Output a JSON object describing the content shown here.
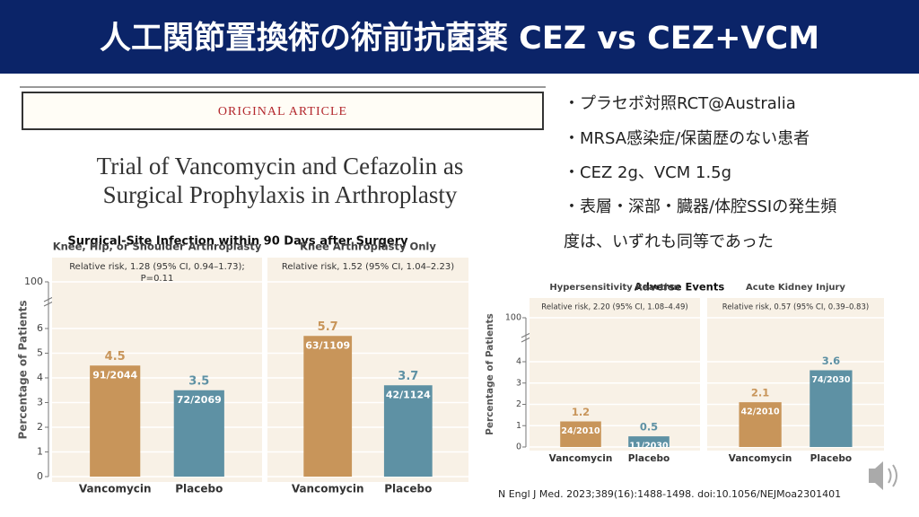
{
  "header": {
    "title": "人工関節置換術の術前抗菌薬 CEZ vs CEZ+VCM"
  },
  "article": {
    "label": "ORIGINAL ARTICLE",
    "title_lines": [
      "Trial of Vancomycin and Cefazolin as",
      "Surgical Prophylaxis in Arthroplasty"
    ]
  },
  "bullets": [
    "・プラセボ対照RCT@Australia",
    "・MRSA感染症/保菌歴のない患者",
    "・CEZ 2g、VCM 1.5g",
    "・表層・深部・臓器/体腔SSIの発生頻",
    "度は、いずれも同等であった"
  ],
  "citation": "N Engl J Med. 2023;389(16):1488-1498. doi:10.1056/NEJMoa2301401",
  "chart_data": [
    {
      "type": "bar",
      "title": "Surgical-Site Infection within 90 Days after Surgery",
      "y_label": "Percentage of Patients",
      "ylim": [
        0,
        100
      ],
      "yticks": [
        0,
        1,
        2,
        3,
        4,
        5,
        6,
        100
      ],
      "axis_break": true,
      "colors": [
        "#c8955a",
        "#5e91a4"
      ],
      "panels": [
        {
          "subtitle": "Knee, Hip, or Shoulder Arthroplasty",
          "annotation": [
            "Relative risk, 1.28 (95% CI, 0.94–1.73);",
            "P=0.11"
          ],
          "categories": [
            "Vancomycin",
            "Placebo"
          ],
          "values": [
            4.5,
            3.5
          ],
          "n_labels": [
            "91/2044",
            "72/2069"
          ]
        },
        {
          "subtitle": "Knee Arthroplasty Only",
          "annotation": [
            "Relative risk, 1.52 (95% CI, 1.04–2.23)"
          ],
          "categories": [
            "Vancomycin",
            "Placebo"
          ],
          "values": [
            5.7,
            3.7
          ],
          "n_labels": [
            "63/1109",
            "42/1124"
          ]
        }
      ]
    },
    {
      "type": "bar",
      "title": "Adverse Events",
      "y_label": "Percentage of Patients",
      "ylim": [
        0,
        100
      ],
      "yticks": [
        0,
        1,
        2,
        3,
        4,
        100
      ],
      "axis_break": true,
      "colors": [
        "#c8955a",
        "#5e91a4"
      ],
      "panels": [
        {
          "subtitle": "Hypersensitivity Reaction",
          "annotation": [
            "Relative risk, 2.20 (95% CI, 1.08–4.49)"
          ],
          "categories": [
            "Vancomycin",
            "Placebo"
          ],
          "values": [
            1.2,
            0.5
          ],
          "n_labels": [
            "24/2010",
            "11/2030"
          ]
        },
        {
          "subtitle": "Acute Kidney Injury",
          "annotation": [
            "Relative risk, 0.57 (95% CI, 0.39–0.83)"
          ],
          "categories": [
            "Vancomycin",
            "Placebo"
          ],
          "values": [
            2.1,
            3.6
          ],
          "n_labels": [
            "42/2010",
            "74/2030"
          ]
        }
      ]
    }
  ]
}
